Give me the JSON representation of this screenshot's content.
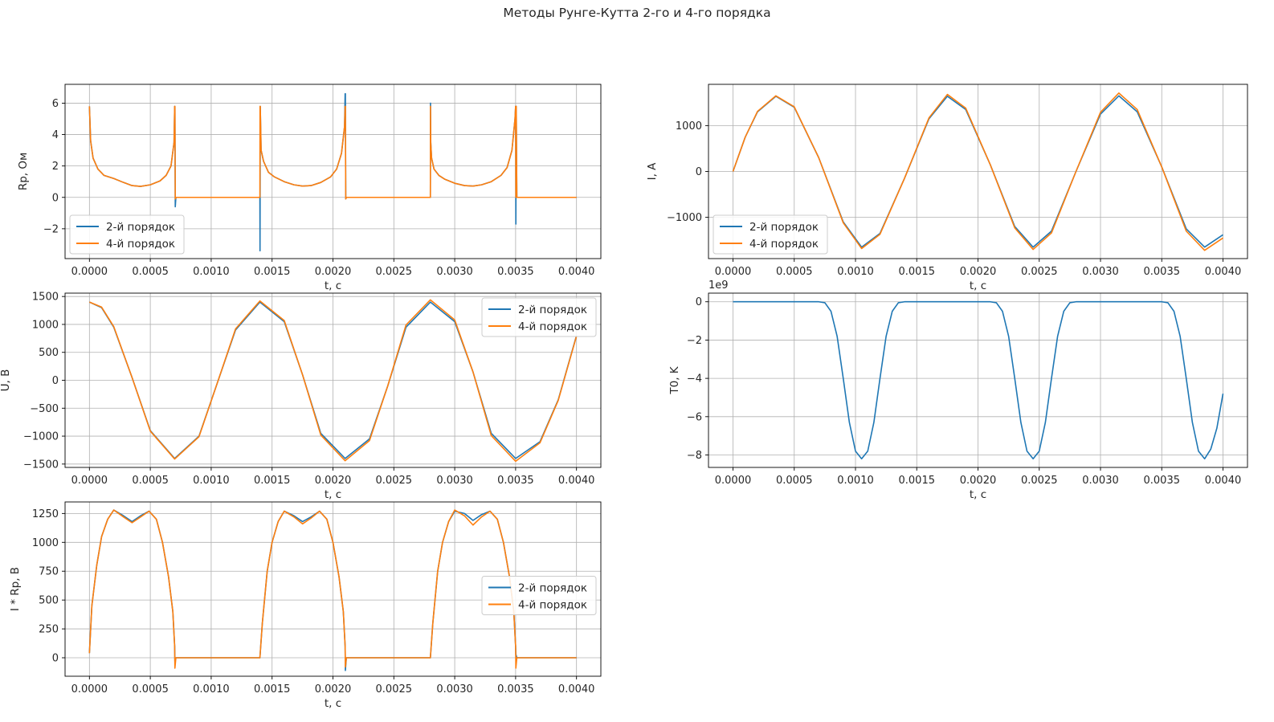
{
  "title": "Методы Рунге-Кутта 2-го и 4-го порядка",
  "colors": {
    "order2": "#1f77b4",
    "order4": "#ff7f0e",
    "grid": "#b0b0b0",
    "axis": "#000000"
  },
  "chart_data": [
    {
      "id": "rp",
      "type": "line",
      "xlabel": "t, c",
      "ylabel": "Rp, Ом",
      "xlim": [
        -0.0002,
        0.0042
      ],
      "ylim": [
        -3.9,
        7.2
      ],
      "xticks": [
        0,
        0.0005,
        0.001,
        0.0015,
        0.002,
        0.0025,
        0.003,
        0.0035,
        0.004
      ],
      "xtick_labels": [
        "0.0000",
        "0.0005",
        "0.0010",
        "0.0015",
        "0.0020",
        "0.0025",
        "0.0030",
        "0.0035",
        "0.0040"
      ],
      "yticks": [
        -2,
        0,
        2,
        4,
        6
      ],
      "ytick_labels": [
        "−2",
        "0",
        "2",
        "4",
        "6"
      ],
      "grid": true,
      "legend": "lower-left",
      "series": [
        {
          "name": "2-й порядок",
          "color": "#1f77b4",
          "x": [
            0.0,
            1e-05,
            3e-05,
            7e-05,
            0.00012,
            0.0002,
            0.00028,
            0.00035,
            0.00042,
            0.0005,
            0.00058,
            0.00063,
            0.00067,
            0.000695,
            0.0007,
            0.000702,
            0.000705,
            0.00071,
            0.0014,
            0.001401,
            0.001403,
            0.00141,
            0.00143,
            0.00147,
            0.00152,
            0.0016,
            0.00168,
            0.00175,
            0.00182,
            0.0019,
            0.00198,
            0.00203,
            0.00207,
            0.002095,
            0.0021,
            0.002102,
            0.002105,
            0.00211,
            0.0028,
            0.002801,
            0.002803,
            0.00281,
            0.00283,
            0.00287,
            0.00292,
            0.003,
            0.00308,
            0.00315,
            0.00322,
            0.0033,
            0.00338,
            0.00343,
            0.00347,
            0.003495,
            0.0035,
            0.003502,
            0.003505,
            0.00351,
            0.004
          ],
          "y": [
            5.8,
            3.6,
            2.5,
            1.8,
            1.4,
            1.2,
            0.95,
            0.75,
            0.7,
            0.8,
            1.05,
            1.4,
            2.0,
            3.5,
            5.8,
            5.8,
            -0.6,
            0.0,
            0.0,
            -3.4,
            5.8,
            3.0,
            2.3,
            1.6,
            1.3,
            1.0,
            0.8,
            0.72,
            0.75,
            0.95,
            1.3,
            1.8,
            2.8,
            4.5,
            6.6,
            6.6,
            -0.1,
            0.0,
            0.0,
            6.0,
            3.5,
            2.5,
            1.8,
            1.4,
            1.15,
            0.9,
            0.75,
            0.72,
            0.8,
            1.0,
            1.4,
            1.9,
            3.0,
            5.0,
            5.8,
            -1.7,
            5.8,
            0.0,
            0.0
          ]
        },
        {
          "name": "4-й порядок",
          "color": "#ff7f0e",
          "x": [
            0.0,
            1e-05,
            3e-05,
            7e-05,
            0.00012,
            0.0002,
            0.00028,
            0.00035,
            0.00042,
            0.0005,
            0.00058,
            0.00063,
            0.00067,
            0.000695,
            0.0007,
            0.000702,
            0.000705,
            0.00071,
            0.0014,
            0.001401,
            0.001403,
            0.00141,
            0.00143,
            0.00147,
            0.00152,
            0.0016,
            0.00168,
            0.00175,
            0.00182,
            0.0019,
            0.00198,
            0.00203,
            0.00207,
            0.002095,
            0.0021,
            0.002102,
            0.002105,
            0.00211,
            0.0028,
            0.002801,
            0.002803,
            0.00281,
            0.00283,
            0.00287,
            0.00292,
            0.003,
            0.00308,
            0.00315,
            0.00322,
            0.0033,
            0.00338,
            0.00343,
            0.00347,
            0.003495,
            0.0035,
            0.003502,
            0.003505,
            0.00351,
            0.004
          ],
          "y": [
            5.8,
            3.6,
            2.5,
            1.8,
            1.4,
            1.2,
            0.95,
            0.75,
            0.7,
            0.8,
            1.05,
            1.4,
            2.0,
            3.5,
            5.8,
            5.8,
            -0.1,
            0.0,
            0.0,
            5.8,
            5.8,
            3.0,
            2.3,
            1.6,
            1.3,
            1.0,
            0.8,
            0.72,
            0.75,
            0.95,
            1.3,
            1.8,
            2.8,
            4.5,
            5.8,
            5.8,
            -0.1,
            0.0,
            0.0,
            5.8,
            3.5,
            2.5,
            1.8,
            1.4,
            1.15,
            0.9,
            0.75,
            0.72,
            0.8,
            1.0,
            1.4,
            1.9,
            3.0,
            5.0,
            5.8,
            0.0,
            5.8,
            0.0,
            0.0
          ]
        }
      ]
    },
    {
      "id": "current",
      "type": "line",
      "xlabel": "t, c",
      "ylabel": "I, A",
      "xlim": [
        -0.0002,
        0.0042
      ],
      "ylim": [
        -1900,
        1900
      ],
      "xticks": [
        0,
        0.0005,
        0.001,
        0.0015,
        0.002,
        0.0025,
        0.003,
        0.0035,
        0.004
      ],
      "xtick_labels": [
        "0.0000",
        "0.0005",
        "0.0010",
        "0.0015",
        "0.0020",
        "0.0025",
        "0.0030",
        "0.0035",
        "0.0040"
      ],
      "yticks": [
        -1000,
        0,
        1000
      ],
      "ytick_labels": [
        "−1000",
        "0",
        "1000"
      ],
      "grid": true,
      "legend": "lower-left",
      "series": [
        {
          "name": "2-й порядок",
          "color": "#1f77b4",
          "x": [
            0.0,
            0.0001,
            0.0002,
            0.00035,
            0.0005,
            0.0007,
            0.0009,
            0.00105,
            0.0012,
            0.0014,
            0.0016,
            0.00175,
            0.0019,
            0.0021,
            0.0023,
            0.00245,
            0.0026,
            0.0028,
            0.003,
            0.00315,
            0.0033,
            0.0035,
            0.0037,
            0.00385,
            0.004
          ],
          "y": [
            0,
            750,
            1300,
            1640,
            1400,
            300,
            -1100,
            -1650,
            -1350,
            -150,
            1150,
            1640,
            1350,
            150,
            -1200,
            -1650,
            -1300,
            0,
            1250,
            1650,
            1300,
            100,
            -1250,
            -1650,
            -1380
          ]
        },
        {
          "name": "4-й порядок",
          "color": "#ff7f0e",
          "x": [
            0.0,
            0.0001,
            0.0002,
            0.00035,
            0.0005,
            0.0007,
            0.0009,
            0.00105,
            0.0012,
            0.0014,
            0.0016,
            0.00175,
            0.0019,
            0.0021,
            0.0023,
            0.00245,
            0.0026,
            0.0028,
            0.003,
            0.00315,
            0.0033,
            0.0035,
            0.0037,
            0.00385,
            0.004
          ],
          "y": [
            0,
            750,
            1310,
            1650,
            1410,
            300,
            -1120,
            -1680,
            -1370,
            -150,
            1170,
            1680,
            1380,
            150,
            -1230,
            -1700,
            -1340,
            0,
            1290,
            1710,
            1350,
            100,
            -1300,
            -1720,
            -1450
          ]
        }
      ]
    },
    {
      "id": "voltage",
      "type": "line",
      "xlabel": "t, c",
      "ylabel": "U, B",
      "xlim": [
        -0.0002,
        0.0042
      ],
      "ylim": [
        -1560,
        1560
      ],
      "xticks": [
        0,
        0.0005,
        0.001,
        0.0015,
        0.002,
        0.0025,
        0.003,
        0.0035,
        0.004
      ],
      "xtick_labels": [
        "0.0000",
        "0.0005",
        "0.0010",
        "0.0015",
        "0.0020",
        "0.0025",
        "0.0030",
        "0.0035",
        "0.0040"
      ],
      "yticks": [
        -1500,
        -1000,
        -500,
        0,
        500,
        1000,
        1500
      ],
      "ytick_labels": [
        "−1500",
        "−1000",
        "−500",
        "0",
        "500",
        "1000",
        "1500"
      ],
      "grid": true,
      "legend": "upper-right",
      "series": [
        {
          "name": "2-й порядок",
          "color": "#1f77b4",
          "x": [
            0.0,
            0.0001,
            0.0002,
            0.00035,
            0.0005,
            0.0007,
            0.0009,
            0.00105,
            0.0012,
            0.0014,
            0.0016,
            0.00175,
            0.0019,
            0.0021,
            0.0023,
            0.00245,
            0.0026,
            0.0028,
            0.003,
            0.00315,
            0.0033,
            0.0035,
            0.0037,
            0.00385,
            0.004
          ],
          "y": [
            1400,
            1300,
            950,
            50,
            -900,
            -1400,
            -1000,
            -50,
            900,
            1400,
            1050,
            100,
            -950,
            -1400,
            -1050,
            -100,
            950,
            1400,
            1050,
            150,
            -950,
            -1400,
            -1100,
            -350,
            800
          ]
        },
        {
          "name": "4-й порядок",
          "color": "#ff7f0e",
          "x": [
            0.0,
            0.0001,
            0.0002,
            0.00035,
            0.0005,
            0.0007,
            0.0009,
            0.00105,
            0.0012,
            0.0014,
            0.0016,
            0.00175,
            0.0019,
            0.0021,
            0.0023,
            0.00245,
            0.0026,
            0.0028,
            0.003,
            0.00315,
            0.0033,
            0.0035,
            0.0037,
            0.00385,
            0.004
          ],
          "y": [
            1400,
            1310,
            960,
            50,
            -910,
            -1410,
            -1010,
            -50,
            920,
            1420,
            1070,
            100,
            -980,
            -1440,
            -1080,
            -100,
            990,
            1440,
            1080,
            150,
            -990,
            -1450,
            -1120,
            -360,
            790
          ]
        }
      ]
    },
    {
      "id": "temperature",
      "type": "line",
      "xlabel": "t, c",
      "ylabel": "T0, K",
      "offset_text": "1e9",
      "xlim": [
        -0.0002,
        0.0042
      ],
      "ylim": [
        -8.65,
        0.45
      ],
      "xticks": [
        0,
        0.0005,
        0.001,
        0.0015,
        0.002,
        0.0025,
        0.003,
        0.0035,
        0.004
      ],
      "xtick_labels": [
        "0.0000",
        "0.0005",
        "0.0010",
        "0.0015",
        "0.0020",
        "0.0025",
        "0.0030",
        "0.0035",
        "0.0040"
      ],
      "yticks": [
        -8,
        -6,
        -4,
        -2,
        0
      ],
      "ytick_labels": [
        "−8",
        "−6",
        "−4",
        "−2",
        "0"
      ],
      "grid": true,
      "legend": "none",
      "series": [
        {
          "name": "",
          "color": "#1f77b4",
          "x": [
            0.0,
            0.0007,
            0.00075,
            0.0008,
            0.00085,
            0.0009,
            0.00095,
            0.001,
            0.00105,
            0.0011,
            0.00115,
            0.0012,
            0.00125,
            0.0013,
            0.00135,
            0.0014,
            0.0021,
            0.00215,
            0.0022,
            0.00225,
            0.0023,
            0.00235,
            0.0024,
            0.00245,
            0.0025,
            0.00255,
            0.0026,
            0.00265,
            0.0027,
            0.00275,
            0.0028,
            0.0035,
            0.00355,
            0.0036,
            0.00365,
            0.0037,
            0.00375,
            0.0038,
            0.00385,
            0.0039,
            0.00395,
            0.004
          ],
          "y": [
            0,
            0,
            -0.05,
            -0.5,
            -1.8,
            -4.0,
            -6.3,
            -7.8,
            -8.2,
            -7.8,
            -6.3,
            -4.0,
            -1.8,
            -0.5,
            -0.05,
            0,
            0,
            -0.05,
            -0.5,
            -1.8,
            -4.0,
            -6.3,
            -7.8,
            -8.2,
            -7.8,
            -6.3,
            -4.0,
            -1.8,
            -0.5,
            -0.05,
            0,
            0,
            -0.05,
            -0.5,
            -1.8,
            -4.0,
            -6.3,
            -7.8,
            -8.2,
            -7.7,
            -6.6,
            -4.8
          ]
        }
      ]
    },
    {
      "id": "ir",
      "type": "line",
      "xlabel": "t, c",
      "ylabel": "I * Rp, B",
      "xlim": [
        -0.0002,
        0.0042
      ],
      "ylim": [
        -160,
        1350
      ],
      "xticks": [
        0,
        0.0005,
        0.001,
        0.0015,
        0.002,
        0.0025,
        0.003,
        0.0035,
        0.004
      ],
      "xtick_labels": [
        "0.0000",
        "0.0005",
        "0.0010",
        "0.0015",
        "0.0020",
        "0.0025",
        "0.0030",
        "0.0035",
        "0.0040"
      ],
      "yticks": [
        0,
        250,
        500,
        750,
        1000,
        1250
      ],
      "ytick_labels": [
        "0",
        "250",
        "500",
        "750",
        "1000",
        "1250"
      ],
      "grid": true,
      "legend": "center-right",
      "series": [
        {
          "name": "2-й порядок",
          "color": "#1f77b4",
          "x": [
            0.0,
            2e-05,
            6e-05,
            0.0001,
            0.00015,
            0.0002,
            0.00028,
            0.00035,
            0.00042,
            0.00049,
            0.00055,
            0.0006,
            0.00065,
            0.000685,
            0.0007,
            0.000702,
            0.00071,
            0.0014,
            0.00142,
            0.00146,
            0.0015,
            0.00155,
            0.0016,
            0.00168,
            0.00175,
            0.00182,
            0.00189,
            0.00195,
            0.002,
            0.00205,
            0.002085,
            0.0021,
            0.002102,
            0.00211,
            0.0028,
            0.00282,
            0.00286,
            0.0029,
            0.00295,
            0.003,
            0.00308,
            0.00315,
            0.00322,
            0.00329,
            0.00335,
            0.0034,
            0.00345,
            0.003485,
            0.0035,
            0.003502,
            0.00351,
            0.004
          ],
          "y": [
            40,
            450,
            800,
            1050,
            1200,
            1280,
            1230,
            1180,
            1230,
            1270,
            1200,
            1000,
            700,
            400,
            100,
            -30,
            0,
            0,
            300,
            750,
            1000,
            1180,
            1270,
            1230,
            1180,
            1220,
            1270,
            1200,
            1000,
            700,
            400,
            100,
            -110,
            0,
            0,
            300,
            750,
            1000,
            1180,
            1270,
            1250,
            1190,
            1240,
            1270,
            1200,
            1000,
            700,
            400,
            100,
            30,
            0,
            0
          ]
        },
        {
          "name": "4-й порядок",
          "color": "#ff7f0e",
          "x": [
            0.0,
            2e-05,
            6e-05,
            0.0001,
            0.00015,
            0.0002,
            0.00028,
            0.00035,
            0.00042,
            0.00049,
            0.00055,
            0.0006,
            0.00065,
            0.000685,
            0.0007,
            0.000702,
            0.00071,
            0.0014,
            0.00142,
            0.00146,
            0.0015,
            0.00155,
            0.0016,
            0.00168,
            0.00175,
            0.00182,
            0.00189,
            0.00195,
            0.002,
            0.00205,
            0.002085,
            0.0021,
            0.002102,
            0.00211,
            0.0028,
            0.00282,
            0.00286,
            0.0029,
            0.00295,
            0.003,
            0.00308,
            0.00315,
            0.00322,
            0.00329,
            0.00335,
            0.0034,
            0.00345,
            0.003485,
            0.0035,
            0.003502,
            0.00351,
            0.004
          ],
          "y": [
            40,
            450,
            800,
            1050,
            1200,
            1280,
            1220,
            1170,
            1220,
            1270,
            1200,
            1000,
            700,
            400,
            100,
            -90,
            0,
            0,
            300,
            750,
            1000,
            1180,
            1270,
            1220,
            1160,
            1210,
            1270,
            1200,
            1000,
            700,
            400,
            100,
            -80,
            0,
            0,
            300,
            750,
            1000,
            1180,
            1280,
            1230,
            1150,
            1220,
            1270,
            1200,
            1000,
            700,
            400,
            100,
            -90,
            0,
            0
          ]
        }
      ]
    }
  ]
}
